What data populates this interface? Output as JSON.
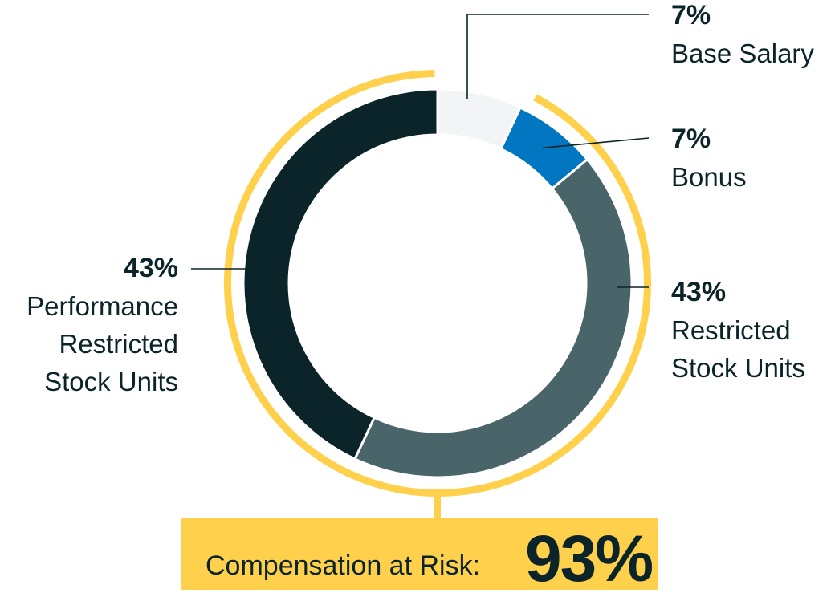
{
  "chart_data": {
    "type": "pie",
    "variant": "donut",
    "categories": [
      "Base Salary",
      "Bonus",
      "Restricted Stock Units",
      "Performance Restricted Stock Units"
    ],
    "values": [
      7,
      7,
      43,
      43
    ],
    "percent_labels": [
      "7%",
      "7%",
      "43%",
      "43%"
    ],
    "name_labels": [
      "Base Salary",
      "Bonus",
      "Restricted\nStock Units",
      "Performance\nRestricted\nStock Units"
    ],
    "colors": [
      "#f2f4f6",
      "#0077c0",
      "#4a6569",
      "#0b2429"
    ],
    "at_risk_highlight_color": "#ffd04c",
    "annotation": {
      "label": "Compensation at Risk:",
      "value": "93%"
    }
  }
}
